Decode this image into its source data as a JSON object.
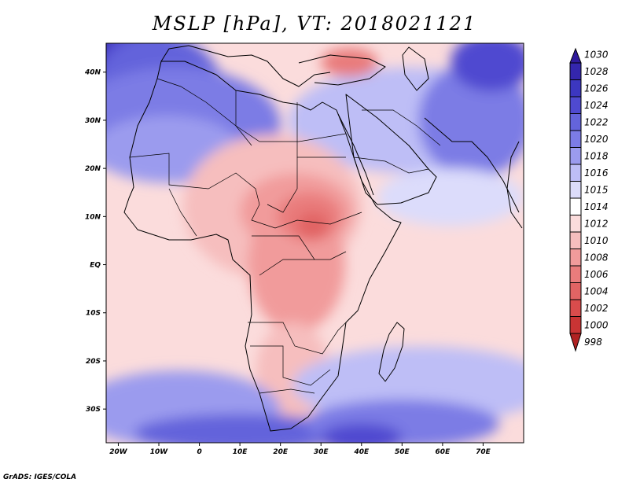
{
  "title": "MSLP [hPa], VT: 2018021121",
  "credit": "GrADS: IGES/COLA",
  "map": {
    "variable": "Mean sea level pressure",
    "units": "hPa",
    "valid_time": "2018021121",
    "extent": {
      "lon_min": -23,
      "lon_max": 80,
      "lat_min": -37,
      "lat_max": 46
    },
    "lon_ticks": [
      {
        "value": -20,
        "label": "20W"
      },
      {
        "value": -10,
        "label": "10W"
      },
      {
        "value": 0,
        "label": "0"
      },
      {
        "value": 10,
        "label": "10E"
      },
      {
        "value": 20,
        "label": "20E"
      },
      {
        "value": 30,
        "label": "30E"
      },
      {
        "value": 40,
        "label": "40E"
      },
      {
        "value": 50,
        "label": "50E"
      },
      {
        "value": 60,
        "label": "60E"
      },
      {
        "value": 70,
        "label": "70E"
      }
    ],
    "lat_ticks": [
      {
        "value": 40,
        "label": "40N"
      },
      {
        "value": 30,
        "label": "30N"
      },
      {
        "value": 20,
        "label": "20N"
      },
      {
        "value": 10,
        "label": "10N"
      },
      {
        "value": 0,
        "label": "EQ"
      },
      {
        "value": -10,
        "label": "10S"
      },
      {
        "value": -20,
        "label": "20S"
      },
      {
        "value": -30,
        "label": "30S"
      }
    ]
  },
  "colorbar": {
    "levels": [
      {
        "label": "1030",
        "color": "#2f1a9c"
      },
      {
        "label": "1028",
        "color": "#3426ad"
      },
      {
        "label": "1026",
        "color": "#3c37c0"
      },
      {
        "label": "1024",
        "color": "#4f4ad0"
      },
      {
        "label": "1022",
        "color": "#6464db"
      },
      {
        "label": "1020",
        "color": "#7c7ce5"
      },
      {
        "label": "1018",
        "color": "#9b9bee"
      },
      {
        "label": "1016",
        "color": "#bebef6"
      },
      {
        "label": "1015",
        "color": "#dcdcfb"
      },
      {
        "label": "1014",
        "color": "#ffffff"
      },
      {
        "label": "1012",
        "color": "#fbdcdc"
      },
      {
        "label": "1010",
        "color": "#f6bebe"
      },
      {
        "label": "1008",
        "color": "#f19b9b"
      },
      {
        "label": "1006",
        "color": "#e97c7c"
      },
      {
        "label": "1004",
        "color": "#e16464"
      },
      {
        "label": "1002",
        "color": "#d94c4c"
      },
      {
        "label": "1000",
        "color": "#c93434"
      },
      {
        "label": "998",
        "color": "#b02222"
      }
    ]
  },
  "field": {
    "background_color": "#fbdcdc",
    "features": [
      {
        "name": "azores-high",
        "lon": -22,
        "lat": 45,
        "color": "#2f1a9c",
        "rx": 7,
        "ry": 9
      },
      {
        "name": "high-nw-2",
        "lon": -14,
        "lat": 38,
        "color": "#4f4ad0",
        "rx": 12,
        "ry": 12
      },
      {
        "name": "high-nw-3",
        "lon": -10,
        "lat": 33,
        "color": "#6464db",
        "rx": 17,
        "ry": 15
      },
      {
        "name": "subtropical-ridge",
        "lon": -6,
        "lat": 29,
        "color": "#7c7ce5",
        "rx": 26,
        "ry": 12
      },
      {
        "name": "sahara-ridge",
        "lon": -8,
        "lat": 24,
        "color": "#9b9bee",
        "rx": 18,
        "ry": 7
      },
      {
        "name": "arabia-ridge",
        "lon": 52,
        "lat": 30,
        "color": "#bebef6",
        "rx": 30,
        "ry": 11
      },
      {
        "name": "iran-high",
        "lon": 68,
        "lat": 30,
        "color": "#7c7ce5",
        "rx": 14,
        "ry": 12
      },
      {
        "name": "central-asia-high",
        "lon": 72,
        "lat": 42,
        "color": "#4f4ad0",
        "rx": 10,
        "ry": 6
      },
      {
        "name": "arabian-sea-ridge",
        "lon": 62,
        "lat": 14,
        "color": "#dcdcfb",
        "rx": 18,
        "ry": 6
      },
      {
        "name": "sahel-low-outer",
        "lon": 18,
        "lat": 12,
        "color": "#f6bebe",
        "rx": 22,
        "ry": 15
      },
      {
        "name": "congo-basin",
        "lon": 24,
        "lat": 0,
        "color": "#f19b9b",
        "rx": 12,
        "ry": 14
      },
      {
        "name": "sudan-low",
        "lon": 24,
        "lat": 11,
        "color": "#f19b9b",
        "rx": 14,
        "ry": 8
      },
      {
        "name": "sudan-low-core",
        "lon": 27,
        "lat": 10,
        "color": "#e97c7c",
        "rx": 8,
        "ry": 5
      },
      {
        "name": "sudan-low-center",
        "lon": 28,
        "lat": 8,
        "color": "#e16464",
        "rx": 4,
        "ry": 3
      },
      {
        "name": "turkey-low",
        "lon": 37,
        "lat": 42,
        "color": "#e97c7c",
        "rx": 7,
        "ry": 3
      },
      {
        "name": "kalahari-low",
        "lon": 23,
        "lat": -22,
        "color": "#f6bebe",
        "rx": 9,
        "ry": 10
      },
      {
        "name": "south-indian-ridge",
        "lon": 55,
        "lat": -25,
        "color": "#bebef6",
        "rx": 32,
        "ry": 8
      },
      {
        "name": "south-atlantic-ridge",
        "lon": -5,
        "lat": -30,
        "color": "#9b9bee",
        "rx": 25,
        "ry": 8
      },
      {
        "name": "southern-high-a",
        "lon": 10,
        "lat": -35,
        "color": "#6464db",
        "rx": 26,
        "ry": 4
      },
      {
        "name": "southern-high-b",
        "lon": 50,
        "lat": -33,
        "color": "#7c7ce5",
        "rx": 24,
        "ry": 5
      },
      {
        "name": "southern-high-core",
        "lon": 40,
        "lat": -36,
        "color": "#4f4ad0",
        "rx": 10,
        "ry": 3
      }
    ]
  }
}
